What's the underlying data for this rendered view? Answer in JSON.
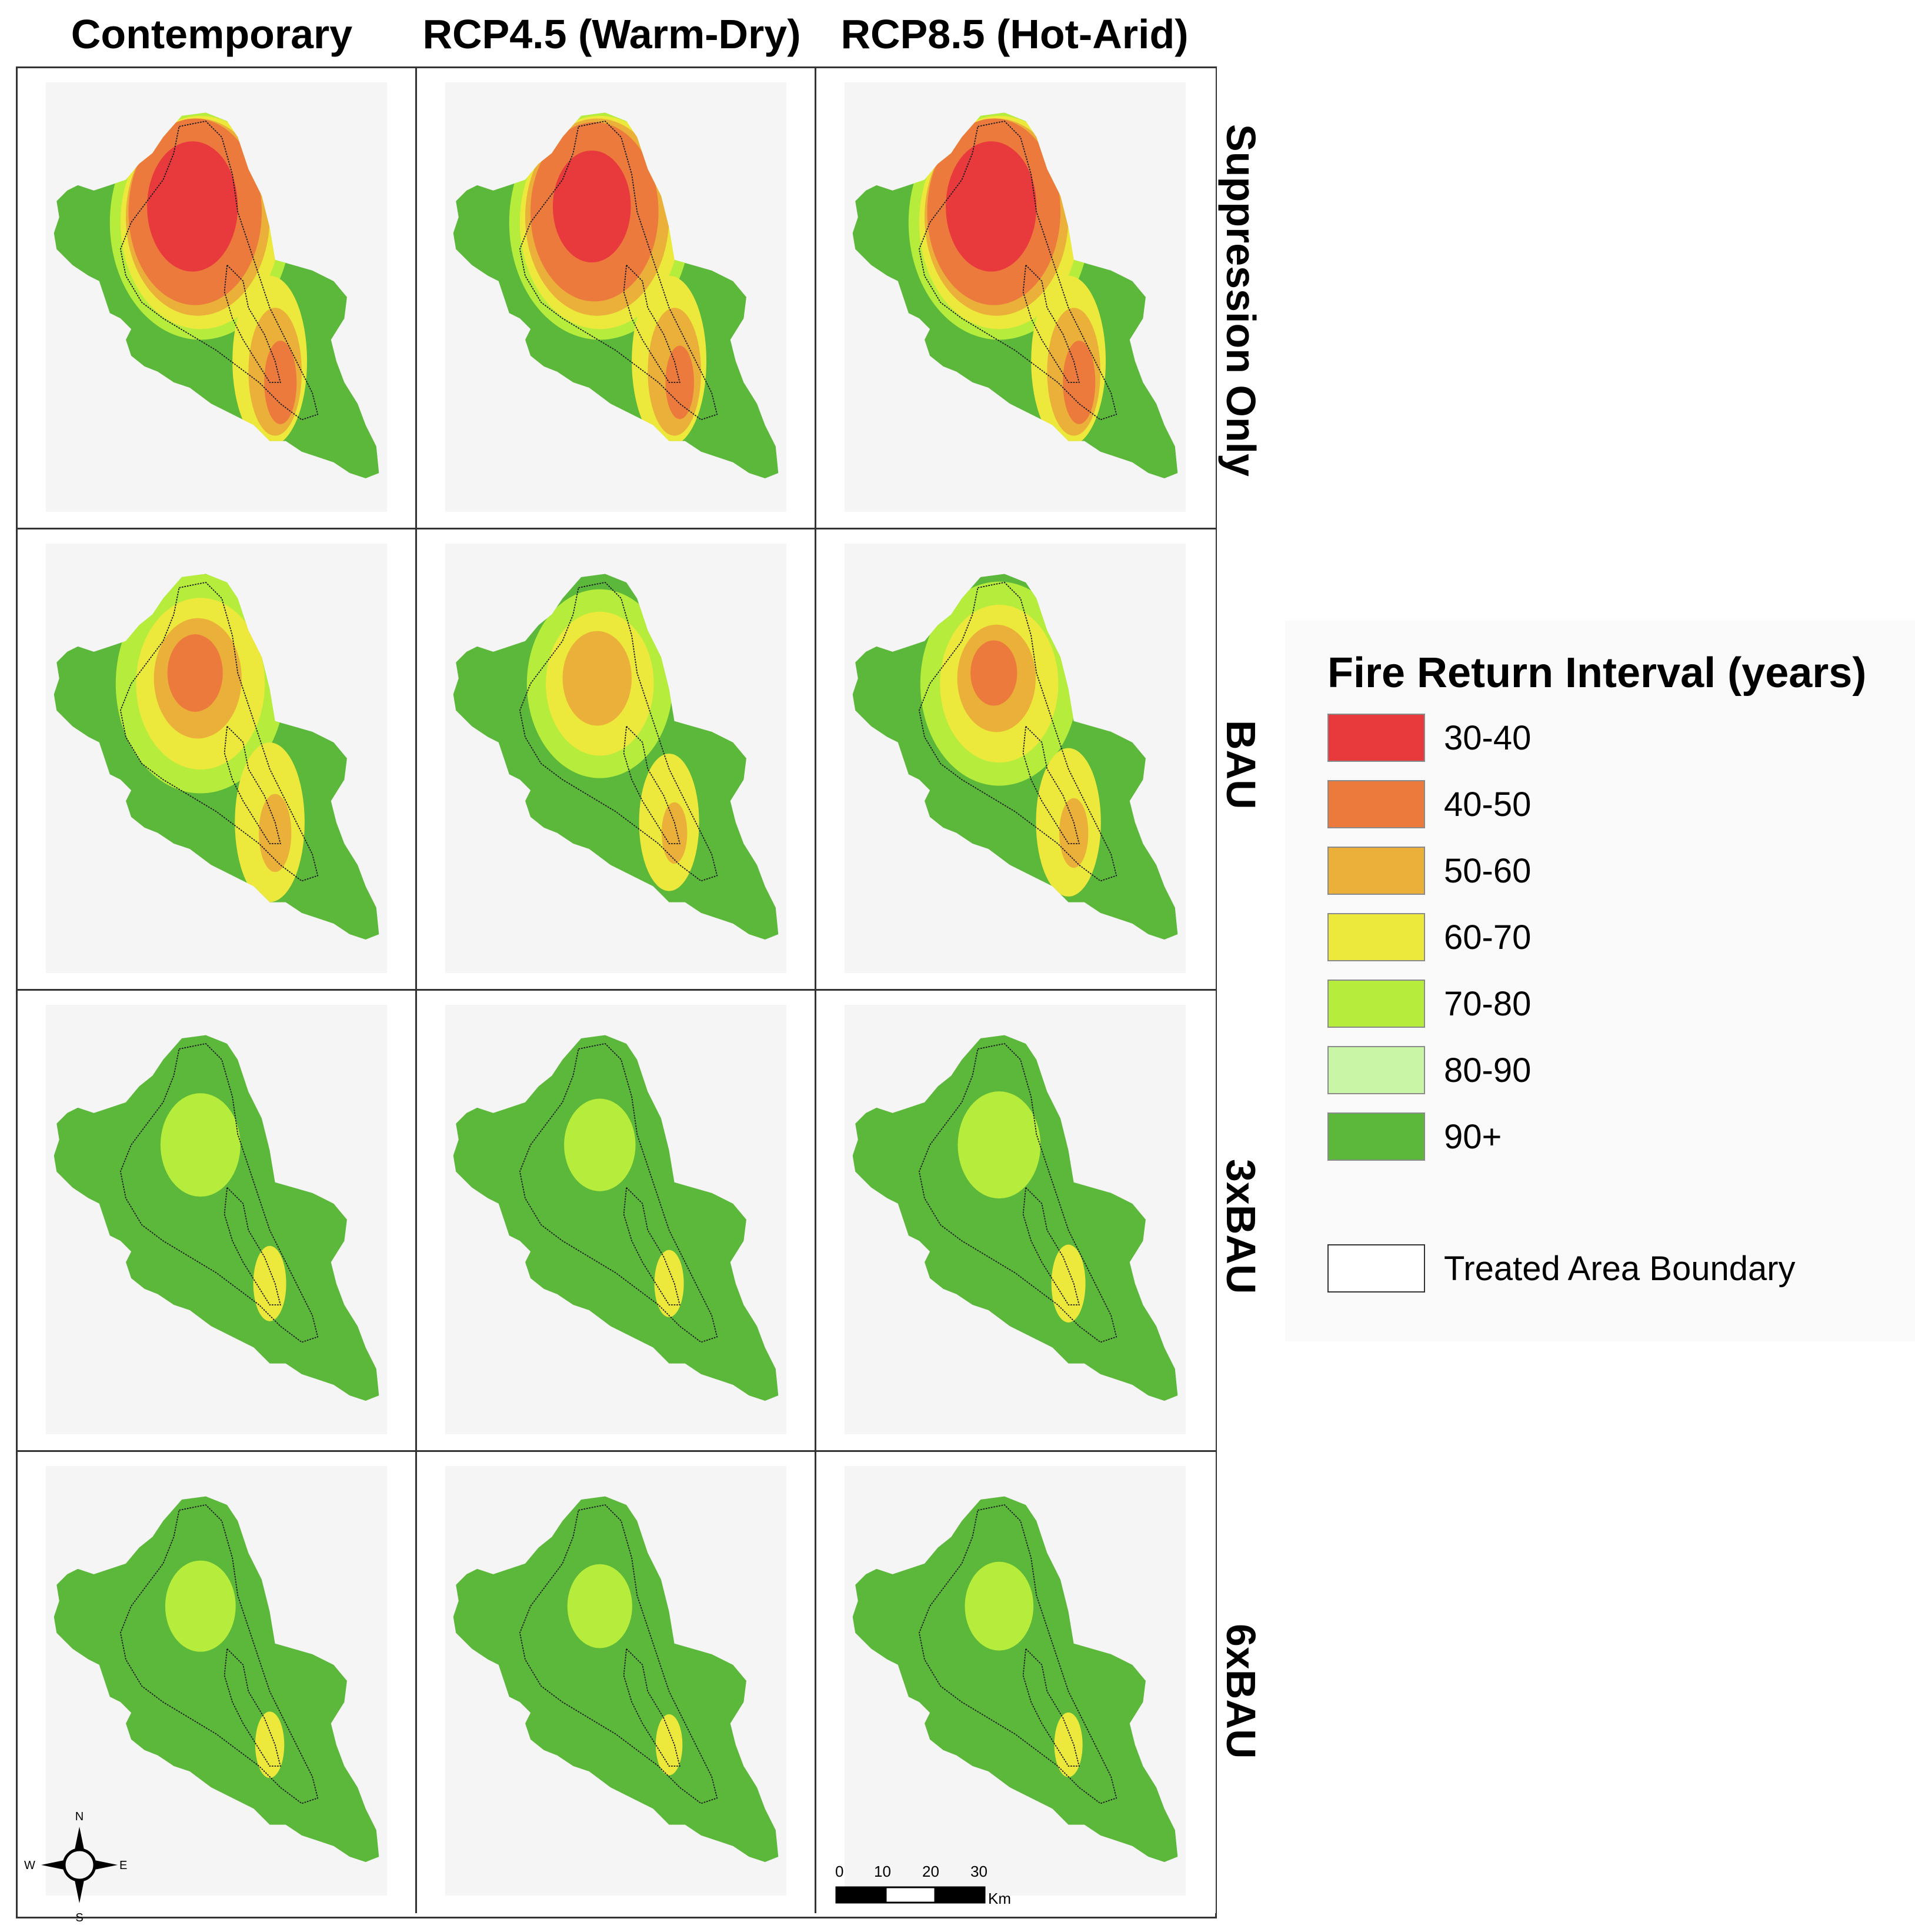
{
  "columns": [
    "Contemporary",
    "RCP4.5 (Warm-Dry)",
    "RCP8.5 (Hot-Arid)"
  ],
  "rows": [
    "Suppression Only",
    "BAU",
    "3xBAU",
    "6xBAU"
  ],
  "legend": {
    "title": "Fire Return Interval (years)",
    "classes": [
      {
        "label": "30-40",
        "color": "#e8393c"
      },
      {
        "label": "40-50",
        "color": "#ec7a3c"
      },
      {
        "label": "50-60",
        "color": "#ebb03a"
      },
      {
        "label": "60-70",
        "color": "#ece93c"
      },
      {
        "label": "70-80",
        "color": "#b6ec3c"
      },
      {
        "label": "80-90",
        "color": "#c8f5a6"
      },
      {
        "label": "90+",
        "color": "#5cb83a"
      }
    ],
    "boundary_label": "Treated Area Boundary"
  },
  "compass": {
    "n": "N",
    "s": "S",
    "e": "E",
    "w": "W"
  },
  "scale": {
    "ticks": [
      "0",
      "10",
      "20",
      "30"
    ],
    "unit": "Km"
  }
}
